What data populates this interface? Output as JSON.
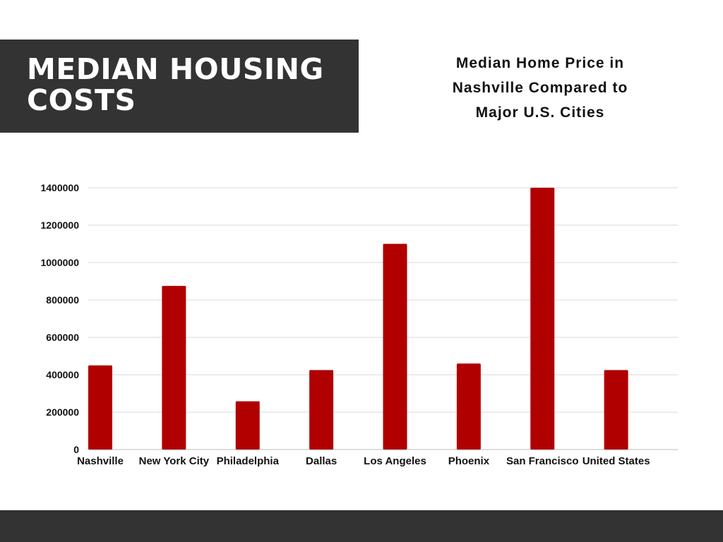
{
  "banner": {
    "title": "MEDIAN HOUSING COSTS"
  },
  "colors": {
    "banner_bg": "#333333",
    "footer_bg": "#333333",
    "bar": "#b00000",
    "grid": "#d9d9d9",
    "text": "#111111"
  },
  "chart_data": {
    "type": "bar",
    "title_lines": [
      "Median Home Price in",
      "Nashville Compared to",
      "Major U.S. Cities"
    ],
    "categories": [
      "Nashville",
      "New York City",
      "Philadelphia",
      "Dallas",
      "Los Angeles",
      "Phoenix",
      "San Francisco",
      "United States"
    ],
    "values": [
      450000,
      875000,
      258000,
      425000,
      1100000,
      460000,
      1400000,
      425000
    ],
    "y_ticks": [
      "0",
      "200000",
      "400000",
      "600000",
      "800000",
      "1000000",
      "1200000",
      "1400000"
    ],
    "ylim": [
      0,
      1400000
    ],
    "grid": true,
    "legend": "none"
  }
}
